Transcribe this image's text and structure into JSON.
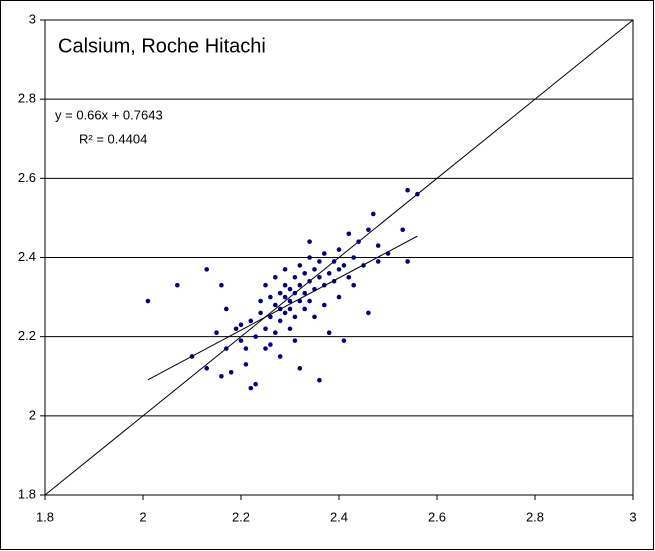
{
  "chart_data": {
    "type": "scatter",
    "title": "Calsium, Roche Hitachi",
    "annotations": [
      "y = 0.66x + 0.7643",
      "R² = 0.4404"
    ],
    "series": [
      {
        "color": "#000080",
        "x": [
          2.01,
          2.07,
          2.1,
          2.13,
          2.13,
          2.15,
          2.16,
          2.16,
          2.17,
          2.17,
          2.18,
          2.19,
          2.2,
          2.2,
          2.21,
          2.21,
          2.22,
          2.22,
          2.23,
          2.23,
          2.24,
          2.24,
          2.25,
          2.25,
          2.25,
          2.26,
          2.26,
          2.26,
          2.27,
          2.27,
          2.27,
          2.28,
          2.28,
          2.28,
          2.28,
          2.29,
          2.29,
          2.29,
          2.29,
          2.3,
          2.3,
          2.3,
          2.3,
          2.31,
          2.31,
          2.31,
          2.31,
          2.32,
          2.32,
          2.32,
          2.32,
          2.33,
          2.33,
          2.33,
          2.34,
          2.34,
          2.34,
          2.34,
          2.35,
          2.35,
          2.35,
          2.36,
          2.36,
          2.36,
          2.37,
          2.37,
          2.37,
          2.38,
          2.38,
          2.39,
          2.39,
          2.4,
          2.4,
          2.4,
          2.41,
          2.41,
          2.42,
          2.42,
          2.43,
          2.43,
          2.44,
          2.45,
          2.46,
          2.46,
          2.47,
          2.48,
          2.48,
          2.5,
          2.53,
          2.54,
          2.54,
          2.56
        ],
        "values": [
          2.29,
          2.33,
          2.15,
          2.37,
          2.12,
          2.21,
          2.33,
          2.1,
          2.17,
          2.27,
          2.11,
          2.22,
          2.19,
          2.23,
          2.17,
          2.13,
          2.07,
          2.24,
          2.08,
          2.2,
          2.26,
          2.29,
          2.17,
          2.22,
          2.33,
          2.25,
          2.3,
          2.18,
          2.28,
          2.35,
          2.21,
          2.27,
          2.31,
          2.24,
          2.15,
          2.3,
          2.33,
          2.26,
          2.37,
          2.29,
          2.32,
          2.22,
          2.27,
          2.31,
          2.35,
          2.25,
          2.19,
          2.33,
          2.29,
          2.12,
          2.38,
          2.31,
          2.36,
          2.27,
          2.34,
          2.4,
          2.29,
          2.44,
          2.32,
          2.37,
          2.25,
          2.09,
          2.35,
          2.39,
          2.33,
          2.41,
          2.28,
          2.36,
          2.21,
          2.39,
          2.34,
          2.37,
          2.42,
          2.3,
          2.38,
          2.19,
          2.35,
          2.46,
          2.4,
          2.33,
          2.44,
          2.38,
          2.26,
          2.47,
          2.51,
          2.39,
          2.43,
          2.41,
          2.47,
          2.39,
          2.57,
          2.56
        ]
      }
    ],
    "trendline": {
      "x": [
        2.01,
        2.56
      ],
      "y": [
        2.091,
        2.454
      ]
    },
    "reference_line": {
      "x": [
        1.8,
        3
      ],
      "y": [
        1.8,
        3
      ]
    },
    "xlim": [
      1.8,
      3
    ],
    "ylim": [
      1.8,
      3
    ],
    "xticks": [
      1.8,
      2,
      2.2,
      2.4,
      2.6,
      2.8,
      3
    ],
    "yticks": [
      1.8,
      2,
      2.2,
      2.4,
      2.6,
      2.8,
      3
    ],
    "grid": true
  }
}
